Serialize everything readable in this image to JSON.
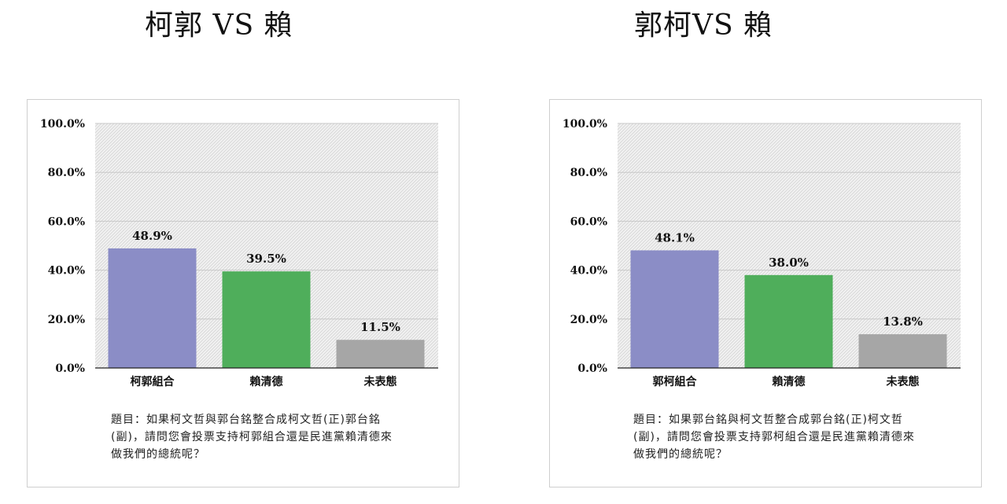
{
  "charts": [
    {
      "heading": "柯郭 VS 賴",
      "caption_lines": [
        "題目：如果柯文哲與郭台銘整合成柯文哲(正)郭台銘",
        "(副)，請問您會投票支持柯郭組合還是民進黨賴清德來",
        "做我們的總統呢？"
      ]
    },
    {
      "heading": "郭柯VS 賴",
      "caption_lines": [
        "題目：如果郭台銘與柯文哲整合成郭台銘(正)柯文哲",
        "(副)，請問您會投票支持郭柯組合還是民進黨賴清德來",
        "做我們的總統呢？"
      ]
    }
  ],
  "chart_data": [
    {
      "type": "bar",
      "title": "柯郭 VS 賴",
      "categories": [
        "柯郭組合",
        "賴清德",
        "未表態"
      ],
      "values": [
        48.9,
        39.5,
        11.5
      ],
      "data_labels": [
        "48.9%",
        "39.5%",
        "11.5%"
      ],
      "colors": [
        "#8b8dc6",
        "#4fae5b",
        "#a6a6a6"
      ],
      "ylim": [
        0,
        100
      ],
      "yticks": [
        "0.0%",
        "20.0%",
        "40.0%",
        "60.0%",
        "80.0%",
        "100.0%"
      ],
      "grid": true,
      "plot_background": "hatched light gray"
    },
    {
      "type": "bar",
      "title": "郭柯VS 賴",
      "categories": [
        "郭柯組合",
        "賴清德",
        "未表態"
      ],
      "values": [
        48.1,
        38.0,
        13.8
      ],
      "data_labels": [
        "48.1%",
        "38.0%",
        "13.8%"
      ],
      "colors": [
        "#8b8dc6",
        "#4fae5b",
        "#a6a6a6"
      ],
      "ylim": [
        0,
        100
      ],
      "yticks": [
        "0.0%",
        "20.0%",
        "40.0%",
        "60.0%",
        "80.0%",
        "100.0%"
      ],
      "grid": true,
      "plot_background": "hatched light gray"
    }
  ]
}
